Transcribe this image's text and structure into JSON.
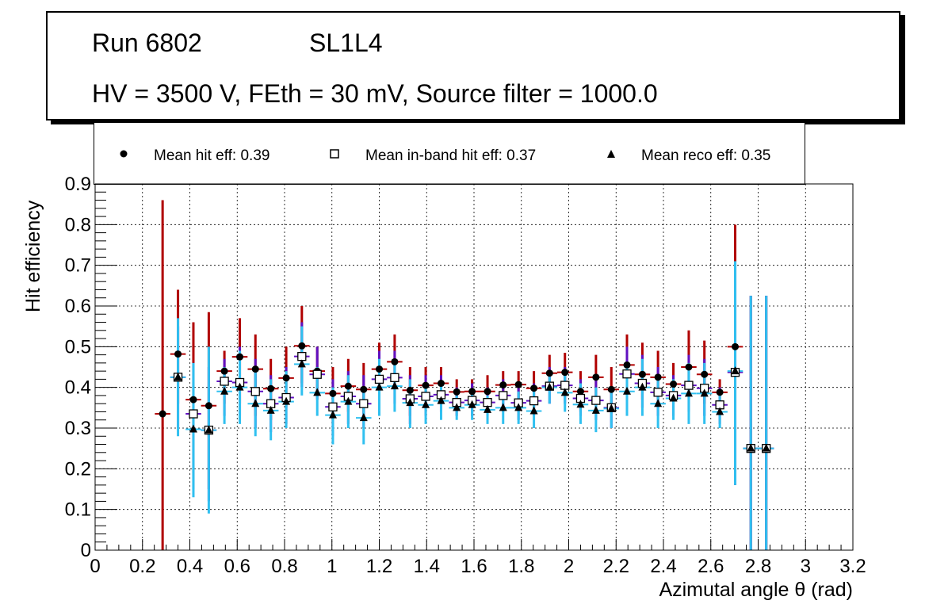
{
  "header": {
    "run": "Run 6802",
    "layer": "SL1L4",
    "conditions": "HV = 3500 V, FEth = 30 mV, Source filter = 1000.0"
  },
  "legend": [
    {
      "marker": "filled-circle",
      "label": "Mean hit  eff: 0.39"
    },
    {
      "marker": "open-square",
      "label": "Mean in-band hit eff: 0.37"
    },
    {
      "marker": "filled-triangle",
      "label": "Mean reco eff: 0.35"
    }
  ],
  "colors": {
    "hit_err": "#b00000",
    "inband_err": "#6010c0",
    "reco_err": "#30c0f0",
    "grid": "#000000"
  },
  "chart_data": {
    "type": "scatter",
    "xlabel": "Azimutal angle θ (rad)",
    "ylabel": "Hit efficiency",
    "xlim": [
      0,
      3.2
    ],
    "ylim": [
      0,
      0.9
    ],
    "xticks": [
      "0",
      "0.2",
      "0.4",
      "0.6",
      "0.8",
      "1",
      "1.2",
      "1.4",
      "1.6",
      "1.8",
      "2",
      "2.2",
      "2.4",
      "2.6",
      "2.8",
      "3",
      "3.2"
    ],
    "yticks": [
      "0",
      "0.1",
      "0.2",
      "0.3",
      "0.4",
      "0.5",
      "0.6",
      "0.7",
      "0.8",
      "0.9"
    ],
    "bin_halfwidth": 0.0327,
    "grid": true,
    "series": [
      {
        "name": "Mean hit  eff: 0.39",
        "marker": "filled-circle",
        "points": [
          {
            "x": 0.285,
            "y": 0.335,
            "elo": 0.0,
            "ehi": 0.86
          },
          {
            "x": 0.35,
            "y": 0.482,
            "elo": 0.36,
            "ehi": 0.64
          },
          {
            "x": 0.415,
            "y": 0.37,
            "elo": 0.19,
            "ehi": 0.56
          },
          {
            "x": 0.48,
            "y": 0.355,
            "elo": 0.15,
            "ehi": 0.585
          },
          {
            "x": 0.546,
            "y": 0.44,
            "elo": 0.36,
            "ehi": 0.49
          },
          {
            "x": 0.611,
            "y": 0.475,
            "elo": 0.36,
            "ehi": 0.57
          },
          {
            "x": 0.677,
            "y": 0.445,
            "elo": 0.33,
            "ehi": 0.53
          },
          {
            "x": 0.742,
            "y": 0.397,
            "elo": 0.32,
            "ehi": 0.47
          },
          {
            "x": 0.807,
            "y": 0.423,
            "elo": 0.35,
            "ehi": 0.5
          },
          {
            "x": 0.873,
            "y": 0.502,
            "elo": 0.41,
            "ehi": 0.6
          },
          {
            "x": 0.938,
            "y": 0.44,
            "elo": 0.38,
            "ehi": 0.5
          },
          {
            "x": 1.004,
            "y": 0.385,
            "elo": 0.31,
            "ehi": 0.45
          },
          {
            "x": 1.069,
            "y": 0.403,
            "elo": 0.34,
            "ehi": 0.47
          },
          {
            "x": 1.134,
            "y": 0.395,
            "elo": 0.33,
            "ehi": 0.46
          },
          {
            "x": 1.2,
            "y": 0.445,
            "elo": 0.37,
            "ehi": 0.51
          },
          {
            "x": 1.265,
            "y": 0.463,
            "elo": 0.4,
            "ehi": 0.53
          },
          {
            "x": 1.33,
            "y": 0.393,
            "elo": 0.33,
            "ehi": 0.45
          },
          {
            "x": 1.396,
            "y": 0.405,
            "elo": 0.36,
            "ehi": 0.45
          },
          {
            "x": 1.461,
            "y": 0.41,
            "elo": 0.37,
            "ehi": 0.45
          },
          {
            "x": 1.527,
            "y": 0.389,
            "elo": 0.36,
            "ehi": 0.42
          },
          {
            "x": 1.592,
            "y": 0.39,
            "elo": 0.36,
            "ehi": 0.42
          },
          {
            "x": 1.657,
            "y": 0.39,
            "elo": 0.35,
            "ehi": 0.43
          },
          {
            "x": 1.723,
            "y": 0.406,
            "elo": 0.37,
            "ehi": 0.44
          },
          {
            "x": 1.788,
            "y": 0.407,
            "elo": 0.37,
            "ehi": 0.44
          },
          {
            "x": 1.853,
            "y": 0.398,
            "elo": 0.35,
            "ehi": 0.44
          },
          {
            "x": 1.919,
            "y": 0.435,
            "elo": 0.39,
            "ehi": 0.48
          },
          {
            "x": 1.984,
            "y": 0.437,
            "elo": 0.39,
            "ehi": 0.485
          },
          {
            "x": 2.05,
            "y": 0.39,
            "elo": 0.34,
            "ehi": 0.44
          },
          {
            "x": 2.115,
            "y": 0.425,
            "elo": 0.37,
            "ehi": 0.48
          },
          {
            "x": 2.18,
            "y": 0.395,
            "elo": 0.35,
            "ehi": 0.45
          },
          {
            "x": 2.246,
            "y": 0.455,
            "elo": 0.39,
            "ehi": 0.53
          },
          {
            "x": 2.311,
            "y": 0.432,
            "elo": 0.37,
            "ehi": 0.51
          },
          {
            "x": 2.377,
            "y": 0.425,
            "elo": 0.36,
            "ehi": 0.49
          },
          {
            "x": 2.442,
            "y": 0.408,
            "elo": 0.36,
            "ehi": 0.46
          },
          {
            "x": 2.507,
            "y": 0.45,
            "elo": 0.38,
            "ehi": 0.54
          },
          {
            "x": 2.573,
            "y": 0.432,
            "elo": 0.36,
            "ehi": 0.515
          },
          {
            "x": 2.638,
            "y": 0.388,
            "elo": 0.35,
            "ehi": 0.42
          },
          {
            "x": 2.703,
            "y": 0.5,
            "elo": 0.2,
            "ehi": 0.8
          },
          {
            "x": 2.769,
            "y": 0.25,
            "elo": 0.0,
            "ehi": 0.625
          },
          {
            "x": 2.834,
            "y": 0.25,
            "elo": 0.0,
            "ehi": 0.625
          }
        ]
      },
      {
        "name": "Mean in-band hit eff: 0.37",
        "marker": "open-square",
        "points": [
          {
            "x": 0.35,
            "y": 0.425,
            "elo": 0.3,
            "ehi": 0.55
          },
          {
            "x": 0.415,
            "y": 0.335,
            "elo": 0.15,
            "ehi": 0.46
          },
          {
            "x": 0.48,
            "y": 0.295,
            "elo": 0.12,
            "ehi": 0.45
          },
          {
            "x": 0.546,
            "y": 0.415,
            "elo": 0.33,
            "ehi": 0.47
          },
          {
            "x": 0.611,
            "y": 0.412,
            "elo": 0.33,
            "ehi": 0.5
          },
          {
            "x": 0.677,
            "y": 0.39,
            "elo": 0.3,
            "ehi": 0.47
          },
          {
            "x": 0.742,
            "y": 0.36,
            "elo": 0.29,
            "ehi": 0.43
          },
          {
            "x": 0.807,
            "y": 0.375,
            "elo": 0.31,
            "ehi": 0.45
          },
          {
            "x": 0.873,
            "y": 0.476,
            "elo": 0.4,
            "ehi": 0.56
          },
          {
            "x": 0.938,
            "y": 0.432,
            "elo": 0.37,
            "ehi": 0.5
          },
          {
            "x": 1.004,
            "y": 0.352,
            "elo": 0.28,
            "ehi": 0.42
          },
          {
            "x": 1.069,
            "y": 0.378,
            "elo": 0.31,
            "ehi": 0.44
          },
          {
            "x": 1.134,
            "y": 0.36,
            "elo": 0.3,
            "ehi": 0.43
          },
          {
            "x": 1.2,
            "y": 0.42,
            "elo": 0.35,
            "ehi": 0.49
          },
          {
            "x": 1.265,
            "y": 0.424,
            "elo": 0.36,
            "ehi": 0.49
          },
          {
            "x": 1.33,
            "y": 0.372,
            "elo": 0.31,
            "ehi": 0.43
          },
          {
            "x": 1.396,
            "y": 0.378,
            "elo": 0.33,
            "ehi": 0.43
          },
          {
            "x": 1.461,
            "y": 0.382,
            "elo": 0.34,
            "ehi": 0.43
          },
          {
            "x": 1.527,
            "y": 0.363,
            "elo": 0.33,
            "ehi": 0.4
          },
          {
            "x": 1.592,
            "y": 0.368,
            "elo": 0.33,
            "ehi": 0.41
          },
          {
            "x": 1.657,
            "y": 0.363,
            "elo": 0.33,
            "ehi": 0.4
          },
          {
            "x": 1.723,
            "y": 0.38,
            "elo": 0.34,
            "ehi": 0.42
          },
          {
            "x": 1.788,
            "y": 0.362,
            "elo": 0.32,
            "ehi": 0.4
          },
          {
            "x": 1.853,
            "y": 0.367,
            "elo": 0.33,
            "ehi": 0.41
          },
          {
            "x": 1.919,
            "y": 0.403,
            "elo": 0.36,
            "ehi": 0.45
          },
          {
            "x": 1.984,
            "y": 0.405,
            "elo": 0.36,
            "ehi": 0.45
          },
          {
            "x": 2.05,
            "y": 0.373,
            "elo": 0.33,
            "ehi": 0.42
          },
          {
            "x": 2.115,
            "y": 0.368,
            "elo": 0.32,
            "ehi": 0.42
          },
          {
            "x": 2.18,
            "y": 0.35,
            "elo": 0.3,
            "ehi": 0.4
          },
          {
            "x": 2.246,
            "y": 0.433,
            "elo": 0.37,
            "ehi": 0.5
          },
          {
            "x": 2.311,
            "y": 0.41,
            "elo": 0.35,
            "ehi": 0.48
          },
          {
            "x": 2.377,
            "y": 0.388,
            "elo": 0.33,
            "ehi": 0.45
          },
          {
            "x": 2.442,
            "y": 0.38,
            "elo": 0.33,
            "ehi": 0.43
          },
          {
            "x": 2.507,
            "y": 0.405,
            "elo": 0.34,
            "ehi": 0.48
          },
          {
            "x": 2.573,
            "y": 0.398,
            "elo": 0.33,
            "ehi": 0.47
          },
          {
            "x": 2.638,
            "y": 0.357,
            "elo": 0.31,
            "ehi": 0.4
          },
          {
            "x": 2.703,
            "y": 0.437,
            "elo": 0.16,
            "ehi": 0.71
          },
          {
            "x": 2.769,
            "y": 0.25,
            "elo": 0.0,
            "ehi": 0.625
          },
          {
            "x": 2.834,
            "y": 0.25,
            "elo": 0.0,
            "ehi": 0.625
          }
        ]
      },
      {
        "name": "Mean reco eff: 0.35",
        "marker": "filled-triangle",
        "points": [
          {
            "x": 0.35,
            "y": 0.425,
            "elo": 0.28,
            "ehi": 0.57
          },
          {
            "x": 0.415,
            "y": 0.297,
            "elo": 0.13,
            "ehi": 0.46
          },
          {
            "x": 0.48,
            "y": 0.295,
            "elo": 0.09,
            "ehi": 0.5
          },
          {
            "x": 0.546,
            "y": 0.39,
            "elo": 0.31,
            "ehi": 0.45
          },
          {
            "x": 0.611,
            "y": 0.4,
            "elo": 0.31,
            "ehi": 0.49
          },
          {
            "x": 0.677,
            "y": 0.36,
            "elo": 0.28,
            "ehi": 0.44
          },
          {
            "x": 0.742,
            "y": 0.343,
            "elo": 0.27,
            "ehi": 0.42
          },
          {
            "x": 0.807,
            "y": 0.365,
            "elo": 0.3,
            "ehi": 0.44
          },
          {
            "x": 0.873,
            "y": 0.457,
            "elo": 0.38,
            "ehi": 0.55
          },
          {
            "x": 0.938,
            "y": 0.387,
            "elo": 0.33,
            "ehi": 0.45
          },
          {
            "x": 1.004,
            "y": 0.332,
            "elo": 0.26,
            "ehi": 0.4
          },
          {
            "x": 1.069,
            "y": 0.365,
            "elo": 0.3,
            "ehi": 0.43
          },
          {
            "x": 1.134,
            "y": 0.325,
            "elo": 0.26,
            "ehi": 0.39
          },
          {
            "x": 1.2,
            "y": 0.4,
            "elo": 0.33,
            "ehi": 0.47
          },
          {
            "x": 1.265,
            "y": 0.403,
            "elo": 0.34,
            "ehi": 0.47
          },
          {
            "x": 1.33,
            "y": 0.362,
            "elo": 0.3,
            "ehi": 0.42
          },
          {
            "x": 1.396,
            "y": 0.357,
            "elo": 0.31,
            "ehi": 0.41
          },
          {
            "x": 1.461,
            "y": 0.367,
            "elo": 0.32,
            "ehi": 0.41
          },
          {
            "x": 1.527,
            "y": 0.35,
            "elo": 0.32,
            "ehi": 0.38
          },
          {
            "x": 1.592,
            "y": 0.357,
            "elo": 0.32,
            "ehi": 0.39
          },
          {
            "x": 1.657,
            "y": 0.345,
            "elo": 0.31,
            "ehi": 0.38
          },
          {
            "x": 1.723,
            "y": 0.35,
            "elo": 0.31,
            "ehi": 0.39
          },
          {
            "x": 1.788,
            "y": 0.35,
            "elo": 0.31,
            "ehi": 0.39
          },
          {
            "x": 1.853,
            "y": 0.342,
            "elo": 0.3,
            "ehi": 0.39
          },
          {
            "x": 1.919,
            "y": 0.4,
            "elo": 0.36,
            "ehi": 0.44
          },
          {
            "x": 1.984,
            "y": 0.387,
            "elo": 0.34,
            "ehi": 0.43
          },
          {
            "x": 2.05,
            "y": 0.358,
            "elo": 0.31,
            "ehi": 0.41
          },
          {
            "x": 2.115,
            "y": 0.343,
            "elo": 0.29,
            "ehi": 0.4
          },
          {
            "x": 2.18,
            "y": 0.348,
            "elo": 0.3,
            "ehi": 0.4
          },
          {
            "x": 2.246,
            "y": 0.39,
            "elo": 0.33,
            "ehi": 0.46
          },
          {
            "x": 2.311,
            "y": 0.4,
            "elo": 0.33,
            "ehi": 0.47
          },
          {
            "x": 2.377,
            "y": 0.36,
            "elo": 0.3,
            "ehi": 0.43
          },
          {
            "x": 2.442,
            "y": 0.373,
            "elo": 0.32,
            "ehi": 0.42
          },
          {
            "x": 2.507,
            "y": 0.385,
            "elo": 0.31,
            "ehi": 0.46
          },
          {
            "x": 2.573,
            "y": 0.385,
            "elo": 0.31,
            "ehi": 0.46
          },
          {
            "x": 2.638,
            "y": 0.34,
            "elo": 0.3,
            "ehi": 0.38
          },
          {
            "x": 2.703,
            "y": 0.44,
            "elo": 0.16,
            "ehi": 0.71
          },
          {
            "x": 2.769,
            "y": 0.25,
            "elo": 0.0,
            "ehi": 0.625
          },
          {
            "x": 2.834,
            "y": 0.25,
            "elo": 0.0,
            "ehi": 0.625
          }
        ]
      }
    ]
  }
}
